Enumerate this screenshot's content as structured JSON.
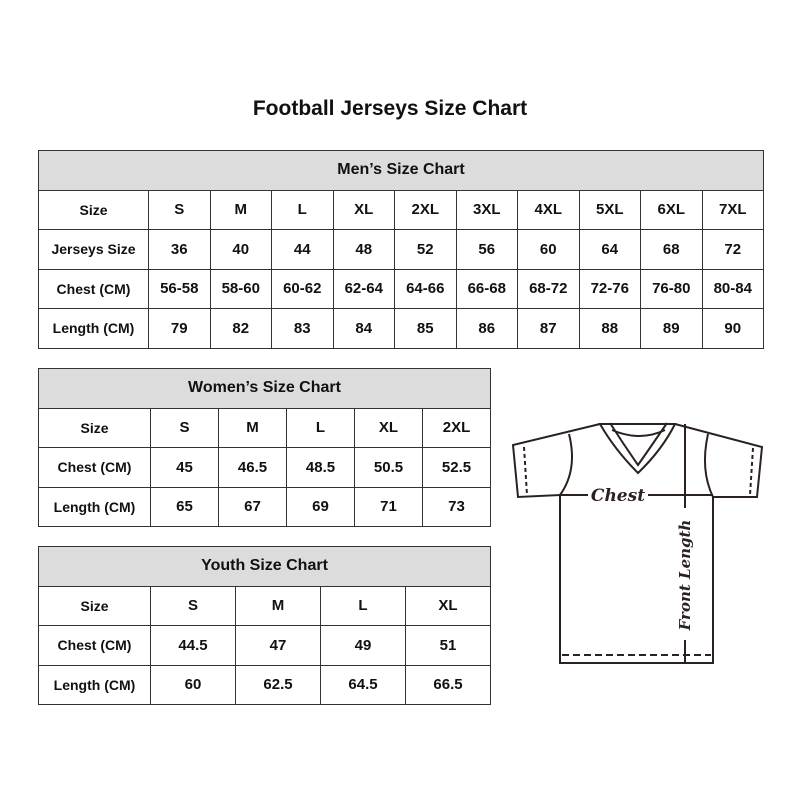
{
  "title": "Football Jerseys Size Chart",
  "men": {
    "caption": "Men’s Size Chart",
    "rows": [
      {
        "label": "Size",
        "values": [
          "S",
          "M",
          "L",
          "XL",
          "2XL",
          "3XL",
          "4XL",
          "5XL",
          "6XL",
          "7XL"
        ]
      },
      {
        "label": "Jerseys Size",
        "values": [
          "36",
          "40",
          "44",
          "48",
          "52",
          "56",
          "60",
          "64",
          "68",
          "72"
        ]
      },
      {
        "label": "Chest (CM)",
        "values": [
          "56-58",
          "58-60",
          "60-62",
          "62-64",
          "64-66",
          "66-68",
          "68-72",
          "72-76",
          "76-80",
          "80-84"
        ]
      },
      {
        "label": "Length (CM)",
        "values": [
          "79",
          "82",
          "83",
          "84",
          "85",
          "86",
          "87",
          "88",
          "89",
          "90"
        ]
      }
    ]
  },
  "women": {
    "caption": "Women’s Size Chart",
    "rows": [
      {
        "label": "Size",
        "values": [
          "S",
          "M",
          "L",
          "XL",
          "2XL"
        ]
      },
      {
        "label": "Chest (CM)",
        "values": [
          "45",
          "46.5",
          "48.5",
          "50.5",
          "52.5"
        ]
      },
      {
        "label": "Length (CM)",
        "values": [
          "65",
          "67",
          "69",
          "71",
          "73"
        ]
      }
    ]
  },
  "youth": {
    "caption": "Youth Size Chart",
    "rows": [
      {
        "label": "Size",
        "values": [
          "S",
          "M",
          "L",
          "XL"
        ]
      },
      {
        "label": "Chest (CM)",
        "values": [
          "44.5",
          "47",
          "49",
          "51"
        ]
      },
      {
        "label": "Length (CM)",
        "values": [
          "60",
          "62.5",
          "64.5",
          "66.5"
        ]
      }
    ]
  },
  "diagram": {
    "chest_label": "Chest",
    "length_label": "Front Length"
  },
  "colors": {
    "header_bg": "#dcdcdc",
    "line": "#2b2220"
  }
}
